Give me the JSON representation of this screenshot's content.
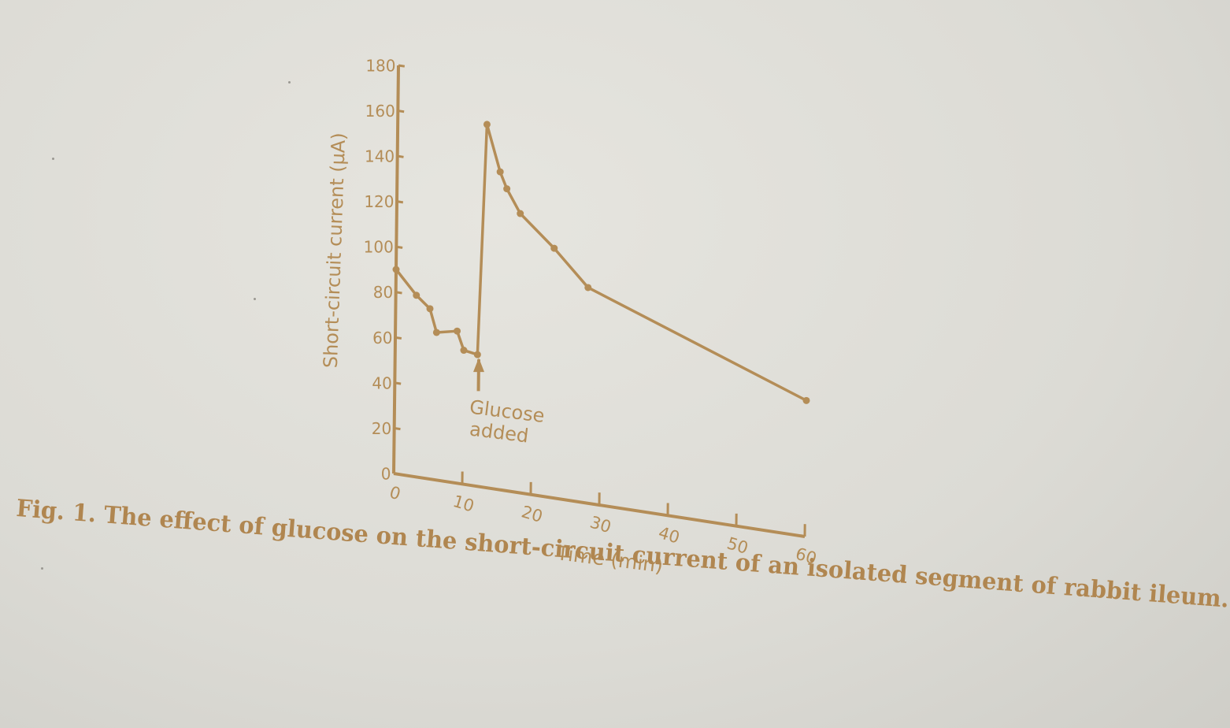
{
  "caption": "Fig. 1. The effect of glucose on the short-circuit current of an isolated segment of rabbit ileum.",
  "chart_data": {
    "type": "line",
    "title": "",
    "xlabel": "Time (min)",
    "ylabel": "Short-circuit current (μA)",
    "xlim": [
      0,
      60
    ],
    "ylim": [
      0,
      180
    ],
    "x_ticks": [
      0,
      10,
      20,
      30,
      40,
      50,
      60
    ],
    "y_ticks": [
      0,
      20,
      40,
      60,
      80,
      100,
      120,
      140,
      160,
      180
    ],
    "x_tick_labels": [
      "0",
      "10",
      "20",
      "30",
      "40",
      "50",
      "60"
    ],
    "y_tick_labels": [
      "0",
      "20",
      "40",
      "60",
      "80",
      "100",
      "120",
      "140",
      "160",
      "180"
    ],
    "grid": false,
    "series": [
      {
        "x": [
          0,
          3,
          5,
          6,
          9,
          10,
          12,
          13,
          15,
          16,
          18,
          23,
          28,
          60
        ],
        "y": [
          90,
          80,
          75,
          65,
          67,
          59,
          58,
          160,
          140,
          133,
          123,
          110,
          95,
          60
        ]
      }
    ],
    "annotations": [
      {
        "text_lines": [
          "Glucose",
          "added"
        ],
        "x": 12.2,
        "y": 58
      }
    ],
    "colors": {
      "ink": "#b48d57",
      "background": "#e2e1db"
    }
  }
}
